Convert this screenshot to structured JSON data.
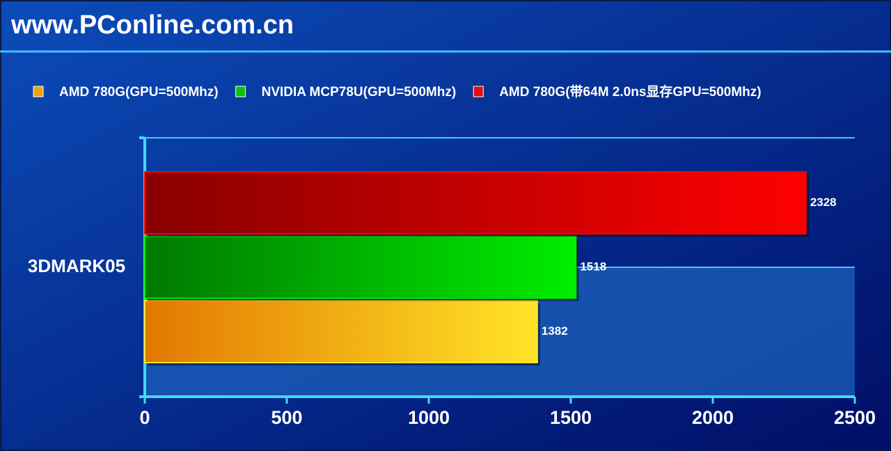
{
  "chart_data": {
    "type": "hbar",
    "title": "www.PConline.com.cn",
    "categories": [
      "3DMARK05"
    ],
    "series": [
      {
        "name": "AMD 780G(GPU=500Mhz)",
        "color": "#f0a010",
        "gradient": [
          "#e27800",
          "#ffe428"
        ],
        "values": [
          1382
        ]
      },
      {
        "name": "NVIDIA MCP78U(GPU=500Mhz)",
        "color": "#10c010",
        "gradient": [
          "#007800",
          "#00ee00"
        ],
        "values": [
          1518
        ]
      },
      {
        "name": "AMD 780G(带64M 2.0ns显存GPU=500Mhz)",
        "color": "#e01010",
        "gradient": [
          "#880000",
          "#ff0000"
        ],
        "values": [
          2328
        ]
      }
    ],
    "xlim": [
      0,
      2500
    ],
    "xticks": [
      0,
      500,
      1000,
      1500,
      2000,
      2500
    ]
  }
}
